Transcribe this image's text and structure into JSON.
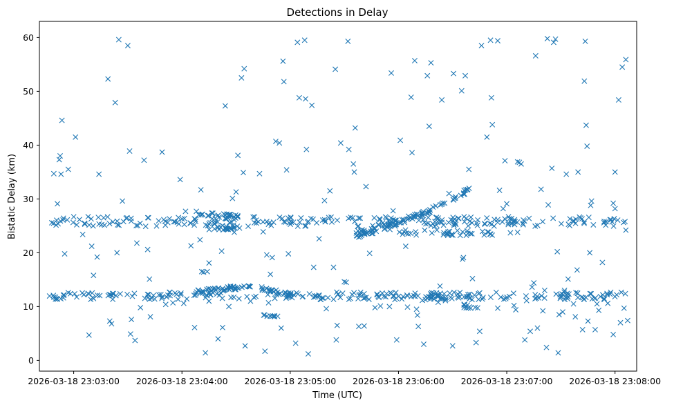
{
  "chart_data": {
    "type": "scatter",
    "title": "Detections in Delay",
    "xlabel": "Time (UTC)",
    "ylabel": "Bistatic Delay (km)",
    "marker": "x",
    "color": "#1f77b4",
    "x_ticks": [
      "2026-03-18 23:03:00",
      "2026-03-18 23:04:00",
      "2026-03-18 23:05:00",
      "2026-03-18 23:06:00",
      "2026-03-18 23:07:00",
      "2026-03-18 23:08:00"
    ],
    "y_ticks": [
      0,
      10,
      20,
      30,
      40,
      50,
      60
    ],
    "xlim_seconds_from_2300": [
      161,
      492
    ],
    "ylim": [
      -2,
      63
    ],
    "grid": false,
    "legend": "none",
    "bands": [
      {
        "y_start": 25.8,
        "y_end": 25.8,
        "x_start": 166,
        "x_end": 487,
        "note_count": 260,
        "spread": 0.9
      },
      {
        "y_start": 12.0,
        "y_end": 12.0,
        "x_start": 166,
        "x_end": 487,
        "note_count": 230,
        "spread": 0.7
      },
      {
        "y_start": 12.7,
        "y_end": 13.9,
        "x_start": 248,
        "x_end": 280,
        "note_count": 45,
        "spread": 0.4
      },
      {
        "y_start": 13.6,
        "y_end": 12.1,
        "x_start": 281,
        "x_end": 301,
        "note_count": 30,
        "spread": 0.4
      },
      {
        "y_start": 23.0,
        "y_end": 27.2,
        "x_start": 336,
        "x_end": 372,
        "note_count": 45,
        "spread": 0.4
      },
      {
        "y_start": 27.0,
        "y_end": 32.0,
        "x_start": 372,
        "x_end": 401,
        "note_count": 35,
        "spread": 0.4
      },
      {
        "y_start": 24.0,
        "y_end": 23.6,
        "x_start": 330,
        "x_end": 412,
        "note_count": 50,
        "spread": 0.5
      },
      {
        "y_start": 27.2,
        "y_end": 26.8,
        "x_start": 249,
        "x_end": 271,
        "note_count": 25,
        "spread": 0.4
      },
      {
        "y_start": 24.6,
        "y_end": 24.4,
        "x_start": 255,
        "x_end": 272,
        "note_count": 20,
        "spread": 0.3
      },
      {
        "y_start": 11.5,
        "y_end": 12.0,
        "x_start": 370,
        "x_end": 400,
        "note_count": 25,
        "spread": 0.4
      },
      {
        "y_start": 10.2,
        "y_end": 9.8,
        "x_start": 395,
        "x_end": 405,
        "note_count": 10,
        "spread": 0.4
      },
      {
        "y_start": 8.3,
        "y_end": 8.3,
        "x_start": 285,
        "x_end": 292,
        "note_count": 8,
        "spread": 0.2
      }
    ],
    "scattered_points": [
      [
        169,
        34.7
      ],
      [
        171,
        29.1
      ],
      [
        172,
        37.3
      ],
      [
        172.5,
        38.0
      ],
      [
        173,
        34.6
      ],
      [
        173.5,
        44.6
      ],
      [
        175,
        19.8
      ],
      [
        177,
        35.5
      ],
      [
        181,
        41.5
      ],
      [
        185,
        23.4
      ],
      [
        188,
        26.7
      ],
      [
        188.5,
        4.7
      ],
      [
        190,
        21.2
      ],
      [
        191,
        15.8
      ],
      [
        193,
        19.2
      ],
      [
        194,
        34.6
      ],
      [
        199,
        52.3
      ],
      [
        200,
        7.3
      ],
      [
        201,
        6.8
      ],
      [
        203,
        47.9
      ],
      [
        204,
        20.0
      ],
      [
        205,
        59.6
      ],
      [
        207,
        29.6
      ],
      [
        210,
        58.5
      ],
      [
        211,
        38.9
      ],
      [
        211.5,
        4.9
      ],
      [
        212,
        7.6
      ],
      [
        214,
        3.7
      ],
      [
        215,
        21.8
      ],
      [
        217,
        9.8
      ],
      [
        219,
        37.2
      ],
      [
        221,
        20.6
      ],
      [
        222,
        15.1
      ],
      [
        222.5,
        8.1
      ],
      [
        229,
        38.7
      ],
      [
        231,
        10.4
      ],
      [
        235,
        10.7
      ],
      [
        237,
        12.3
      ],
      [
        239,
        33.6
      ],
      [
        241,
        10.6
      ],
      [
        242,
        27.7
      ],
      [
        245,
        21.3
      ],
      [
        247,
        6.1
      ],
      [
        248,
        27.7
      ],
      [
        250,
        22.4
      ],
      [
        250.5,
        31.7
      ],
      [
        251,
        16.5
      ],
      [
        252,
        16.4
      ],
      [
        253,
        1.4
      ],
      [
        254,
        16.5
      ],
      [
        255,
        18.1
      ],
      [
        255,
        11.0
      ],
      [
        256,
        12.2
      ],
      [
        260,
        4.0
      ],
      [
        262,
        20.3
      ],
      [
        262.5,
        6.1
      ],
      [
        264,
        47.3
      ],
      [
        266,
        10.0
      ],
      [
        268,
        30.1
      ],
      [
        269,
        23.8
      ],
      [
        270,
        31.3
      ],
      [
        271,
        38.1
      ],
      [
        273,
        52.5
      ],
      [
        274,
        34.9
      ],
      [
        274.5,
        54.2
      ],
      [
        275,
        2.7
      ],
      [
        278,
        11.0
      ],
      [
        283,
        34.7
      ],
      [
        285,
        23.9
      ],
      [
        286,
        1.7
      ],
      [
        287,
        19.6
      ],
      [
        288,
        10.7
      ],
      [
        289,
        16.0
      ],
      [
        290,
        19.1
      ],
      [
        292,
        40.7
      ],
      [
        293,
        8.2
      ],
      [
        294,
        40.4
      ],
      [
        295,
        6.0
      ],
      [
        296,
        55.6
      ],
      [
        296.5,
        51.8
      ],
      [
        298,
        35.4
      ],
      [
        299,
        19.8
      ],
      [
        303,
        3.2
      ],
      [
        304,
        59.1
      ],
      [
        305,
        48.8
      ],
      [
        308,
        59.5
      ],
      [
        308.5,
        48.6
      ],
      [
        309,
        39.2
      ],
      [
        310,
        1.2
      ],
      [
        312,
        47.4
      ],
      [
        313,
        17.3
      ],
      [
        316,
        22.6
      ],
      [
        317,
        11.3
      ],
      [
        319,
        29.7
      ],
      [
        320,
        9.6
      ],
      [
        322,
        31.5
      ],
      [
        324,
        17.3
      ],
      [
        325,
        54.1
      ],
      [
        325.5,
        3.8
      ],
      [
        326,
        6.5
      ],
      [
        328,
        40.4
      ],
      [
        330,
        14.6
      ],
      [
        331,
        14.5
      ],
      [
        332,
        59.3
      ],
      [
        332.5,
        39.2
      ],
      [
        335,
        36.5
      ],
      [
        335.5,
        35.0
      ],
      [
        336,
        43.2
      ],
      [
        338,
        6.3
      ],
      [
        341,
        6.4
      ],
      [
        342,
        32.3
      ],
      [
        344,
        19.9
      ],
      [
        347,
        9.8
      ],
      [
        350,
        10.1
      ],
      [
        351,
        12.5
      ],
      [
        355,
        10.0
      ],
      [
        356,
        53.4
      ],
      [
        357,
        27.8
      ],
      [
        358,
        11.3
      ],
      [
        359,
        3.8
      ],
      [
        361,
        40.9
      ],
      [
        364,
        21.2
      ],
      [
        365,
        9.9
      ],
      [
        367,
        48.9
      ],
      [
        367.5,
        38.6
      ],
      [
        369,
        55.7
      ],
      [
        370,
        9.5
      ],
      [
        370.5,
        8.4
      ],
      [
        371,
        6.3
      ],
      [
        374,
        3.0
      ],
      [
        376,
        52.9
      ],
      [
        377,
        43.5
      ],
      [
        378,
        55.3
      ],
      [
        382,
        10.8
      ],
      [
        383,
        13.8
      ],
      [
        384,
        48.4
      ],
      [
        386,
        11.1
      ],
      [
        388,
        31.0
      ],
      [
        390,
        2.7
      ],
      [
        390.5,
        53.3
      ],
      [
        395,
        50.1
      ],
      [
        395.5,
        18.8
      ],
      [
        396,
        19.1
      ],
      [
        397,
        52.9
      ],
      [
        399,
        35.5
      ],
      [
        400,
        9.7
      ],
      [
        401,
        15.2
      ],
      [
        403,
        3.3
      ],
      [
        405,
        5.4
      ],
      [
        406,
        58.5
      ],
      [
        409,
        41.5
      ],
      [
        411,
        59.5
      ],
      [
        411.5,
        48.8
      ],
      [
        412,
        43.8
      ],
      [
        415,
        59.4
      ],
      [
        416,
        31.6
      ],
      [
        419,
        37.1
      ],
      [
        420,
        29.1
      ],
      [
        424,
        10.2
      ],
      [
        425,
        9.4
      ],
      [
        426,
        36.9
      ],
      [
        427,
        36.8
      ],
      [
        428,
        36.5
      ],
      [
        430,
        3.8
      ],
      [
        431,
        11.1
      ],
      [
        433,
        5.4
      ],
      [
        434,
        13.6
      ],
      [
        435,
        14.4
      ],
      [
        436,
        56.6
      ],
      [
        437,
        6.0
      ],
      [
        439,
        31.8
      ],
      [
        440,
        9.2
      ],
      [
        441,
        13.0
      ],
      [
        442,
        2.4
      ],
      [
        442.5,
        59.8
      ],
      [
        443,
        28.9
      ],
      [
        445,
        35.7
      ],
      [
        446,
        59.1
      ],
      [
        447,
        59.7
      ],
      [
        448,
        20.2
      ],
      [
        448.5,
        1.4
      ],
      [
        449,
        8.5
      ],
      [
        451,
        9.0
      ],
      [
        452,
        13.0
      ],
      [
        453,
        34.6
      ],
      [
        454,
        15.1
      ],
      [
        455,
        26.3
      ],
      [
        457,
        10.5
      ],
      [
        458,
        8.1
      ],
      [
        459,
        16.8
      ],
      [
        459.5,
        35.0
      ],
      [
        462,
        5.7
      ],
      [
        463,
        51.9
      ],
      [
        463.5,
        59.3
      ],
      [
        464,
        43.7
      ],
      [
        464.5,
        39.8
      ],
      [
        465,
        7.3
      ],
      [
        466,
        20.0
      ],
      [
        466.5,
        28.8
      ],
      [
        467,
        29.6
      ],
      [
        469,
        5.7
      ],
      [
        470,
        10.5
      ],
      [
        471,
        9.3
      ],
      [
        473,
        18.2
      ],
      [
        474,
        11.3
      ],
      [
        476,
        10.6
      ],
      [
        479,
        4.8
      ],
      [
        480,
        35.0
      ],
      [
        482,
        48.4
      ],
      [
        483,
        7.0
      ],
      [
        484,
        54.5
      ],
      [
        485,
        9.7
      ],
      [
        486,
        55.9
      ],
      [
        487,
        7.4
      ],
      [
        479,
        29.2
      ],
      [
        480,
        28.2
      ],
      [
        486,
        24.2
      ],
      [
        415,
        9.7
      ],
      [
        418,
        28.2
      ],
      [
        422,
        23.7
      ],
      [
        426,
        23.8
      ]
    ]
  }
}
